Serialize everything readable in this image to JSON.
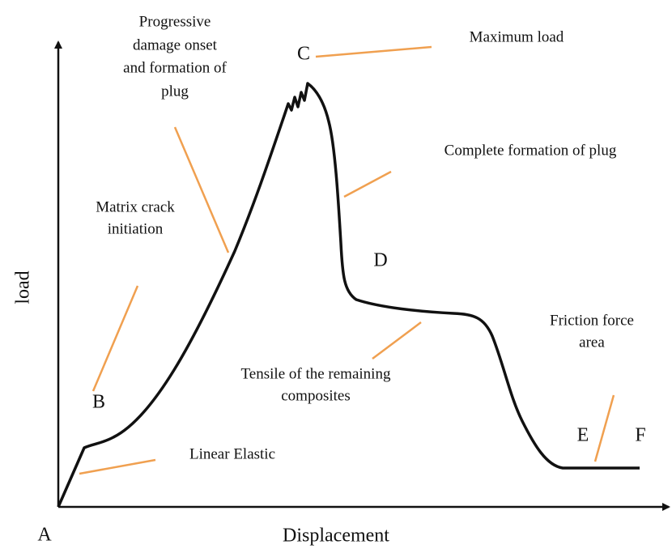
{
  "axes": {
    "x_label": "Displacement",
    "y_label": "load"
  },
  "points": [
    {
      "label": "A"
    },
    {
      "label": "B"
    },
    {
      "label": "C"
    },
    {
      "label": "D"
    },
    {
      "label": "E"
    },
    {
      "label": "F"
    }
  ],
  "annotations": [
    {
      "lines": [
        "Progressive",
        "damage onset",
        "and formation of",
        "plug"
      ]
    },
    {
      "lines": [
        "Maximum load"
      ]
    },
    {
      "lines": [
        "Complete formation of plug"
      ]
    },
    {
      "lines": [
        "Matrix crack",
        "initiation"
      ]
    },
    {
      "lines": [
        "Friction force",
        "area"
      ]
    },
    {
      "lines": [
        "Tensile of the remaining",
        "composites"
      ]
    },
    {
      "lines": [
        "Linear Elastic"
      ]
    }
  ]
}
